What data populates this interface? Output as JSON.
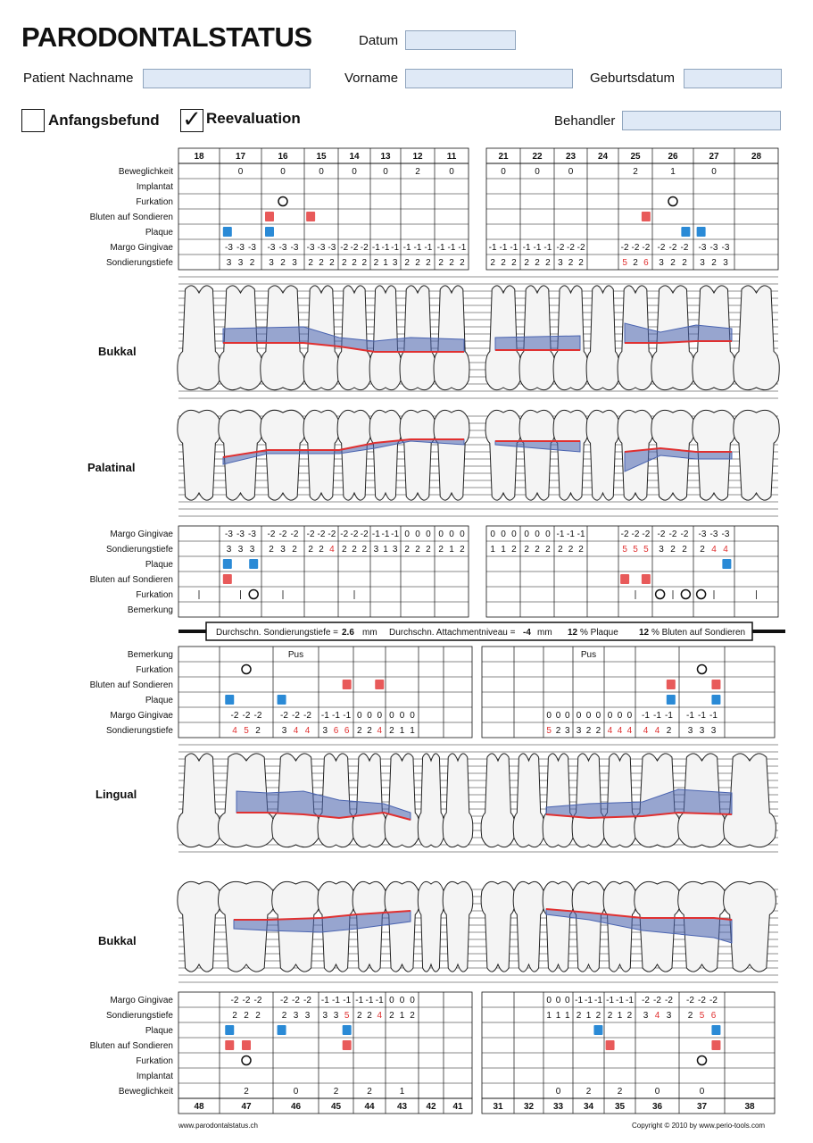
{
  "header": {
    "title": "PARODONTALSTATUS",
    "datum_label": "Datum",
    "nachname_label": "Patient Nachname",
    "vorname_label": "Vorname",
    "geburtsdatum_label": "Geburtsdatum",
    "behandler_label": "Behandler",
    "anfangsbefund_label": "Anfangsbefund",
    "reevaluation_label": "Reevaluation",
    "anfangsbefund_checked": false,
    "reevaluation_checked": true,
    "check_glyph": "✓"
  },
  "upper": {
    "teeth_left": [
      "18",
      "17",
      "16",
      "15",
      "14",
      "13",
      "12",
      "11"
    ],
    "teeth_right": [
      "21",
      "22",
      "23",
      "24",
      "25",
      "26",
      "27",
      "28"
    ],
    "buccal_rows": [
      "Beweglichkeit",
      "Implantat",
      "Furkation",
      "Bluten auf Sondieren",
      "Plaque",
      "Margo Gingivae",
      "Sondierungstiefe"
    ],
    "beweglichkeit_left": [
      "",
      "0",
      "0",
      "0",
      "0",
      "0",
      "2",
      "0"
    ],
    "beweglichkeit_right": [
      "0",
      "0",
      "0",
      "",
      "2",
      "1",
      "0",
      ""
    ],
    "margo_buccal_left": [
      "",
      "-3 -3 -3",
      "-3 -3 -3",
      "-3 -3 -3",
      "-2 -2 -2",
      "-1 -1 -1",
      "-1 -1 -1",
      "-1 -1 -1"
    ],
    "margo_buccal_right": [
      "-1 -1 -1",
      "-1 -1 -1",
      "-2 -2 -2",
      "",
      "-2 -2 -2",
      "-2 -2 -2",
      "-3 -3 -3",
      ""
    ],
    "sond_buccal_left": [
      "",
      "3 3 2",
      "3 2 3",
      "2 2 2",
      "2 2 2",
      "2 1 3",
      "2 2 2",
      "2 2 2"
    ],
    "sond_buccal_right": [
      "2 2 2",
      "2 2 2",
      "3 2 2",
      "",
      "5 2 6",
      "3 2 2",
      "3 2 3",
      ""
    ],
    "label_buccal": "Bukkal",
    "label_palatal": "Palatinal",
    "palatal_rows": [
      "Margo Gingivae",
      "Sondierungstiefe",
      "Plaque",
      "Bluten auf Sondieren",
      "Furkation",
      "Bemerkung"
    ],
    "margo_pal_left": [
      "",
      "-3 -3 -3",
      "-2 -2 -2",
      "-2 -2 -2",
      "-2 -2 -2",
      "-1 -1 -1",
      "0 0 0",
      "0 0 0"
    ],
    "margo_pal_right": [
      "0 0 0",
      "0 0 0",
      "-1 -1 -1",
      "",
      "-2 -2 -2",
      "-2 -2 -2",
      "-3 -3 -3",
      ""
    ],
    "sond_pal_left": [
      "",
      "3 3 3",
      "2 3 2",
      "2 2 4",
      "2 2 2",
      "3 1 3",
      "2 2 2",
      "2 1 2"
    ],
    "sond_pal_right": [
      "1 1 2",
      "2 2 2",
      "2 2 2",
      "",
      "5 5 5",
      "3 2 2",
      "2 4 4",
      ""
    ]
  },
  "summary": {
    "sond_label": "Durchschn. Sondierungstiefe =",
    "sond_value": "2.6",
    "sond_unit": "mm",
    "att_label": "Durchschn. Attachmentniveau =",
    "att_value": "-4",
    "att_unit": "mm",
    "plaque_value": "12",
    "plaque_label": "% Plaque",
    "bleed_value": "12",
    "bleed_label": "% Bluten auf Sondieren"
  },
  "lower": {
    "teeth_left": [
      "48",
      "47",
      "46",
      "45",
      "44",
      "43",
      "42",
      "41"
    ],
    "teeth_right": [
      "31",
      "32",
      "33",
      "34",
      "35",
      "36",
      "37",
      "38"
    ],
    "lingual_rows": [
      "Bemerkung",
      "Furkation",
      "Bluten auf Sondieren",
      "Plaque",
      "Margo Gingivae",
      "Sondierungstiefe"
    ],
    "bemerkung_left_note": "Pus",
    "bemerkung_right_note": "Pus",
    "margo_ling_left": [
      "",
      "-2 -2 -2",
      "-2 -2 -2",
      "-1 -1 -1",
      "0 0 0",
      "0 0 0",
      "",
      ""
    ],
    "margo_ling_right": [
      "",
      "",
      "0 0 0",
      "0 0 0",
      "0 0 0",
      "-1 -1 -1",
      "-1 -1 -1",
      ""
    ],
    "sond_ling_left": [
      "",
      "4 5 2",
      "3 4 4",
      "3 6 6",
      "2 2 4",
      "2 1 1",
      "",
      ""
    ],
    "sond_ling_right": [
      "",
      "",
      "5 2 3",
      "3 2 2",
      "4 4 4",
      "4 4 2",
      "3 3 3",
      ""
    ],
    "label_lingual": "Lingual",
    "label_buccal": "Bukkal",
    "buccal_rows": [
      "Margo Gingivae",
      "Sondierungstiefe",
      "Plaque",
      "Bluten auf Sondieren",
      "Furkation",
      "Implantat",
      "Beweglichkeit"
    ],
    "margo_buc_left": [
      "",
      "-2 -2 -2",
      "-2 -2 -2",
      "-1 -1 -1",
      "-1 -1 -1",
      "0 0 0",
      "",
      ""
    ],
    "margo_buc_right": [
      "",
      "",
      "0 0 0",
      "-1 -1 -1",
      "-1 -1 -1",
      "-2 -2 -2",
      "-2 -2 -2",
      ""
    ],
    "sond_buc_left": [
      "",
      "2 2 2",
      "2 3 3",
      "3 3 5",
      "2 2 4",
      "2 1 2",
      "",
      ""
    ],
    "sond_buc_right": [
      "",
      "",
      "1 1 1",
      "2 1 2",
      "2 1 2",
      "3 4 3",
      "2 5 6",
      ""
    ],
    "beweglichkeit_left": [
      "",
      "2",
      "0",
      "2",
      "2",
      "1",
      "",
      ""
    ],
    "beweglichkeit_right": [
      "",
      "",
      "0",
      "2",
      "2",
      "0",
      "0",
      ""
    ]
  },
  "footer": {
    "left": "www.parodontalstatus.ch",
    "right": "Copyright © 2010 by www.perio-tools.com"
  },
  "colors": {
    "field_bg": "#dfe9f6",
    "plaque": "#2a8ad6",
    "bleeding": "#e85a5a",
    "pocket_fill": "#4a64b0",
    "gingiva_line": "#e03030"
  }
}
